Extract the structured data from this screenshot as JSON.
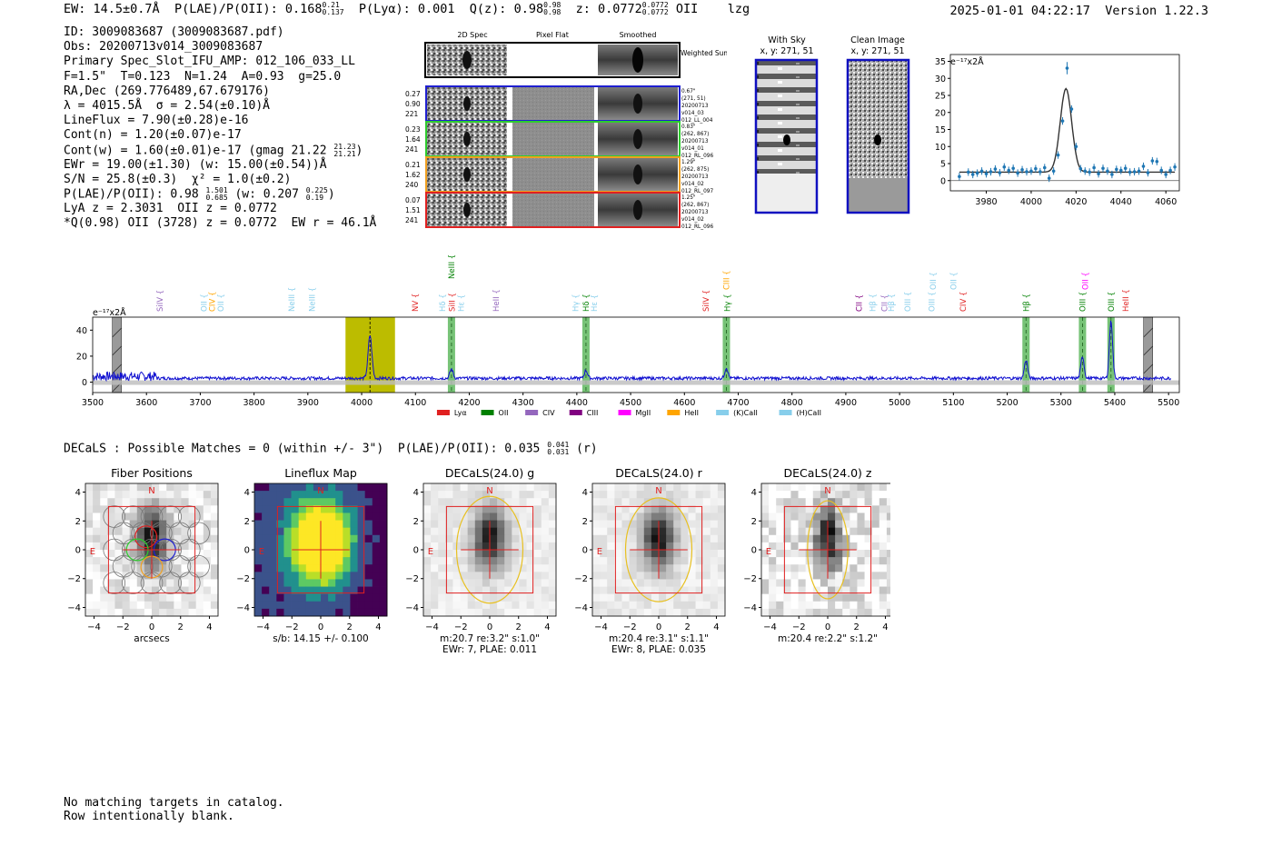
{
  "header": {
    "ew": "EW: 14.5±0.7Å",
    "plae": "P(LAE)/P(OII): 0.168",
    "plae_hi": "0.21",
    "plae_lo": "0.137",
    "plya": "P(Lyα): 0.001",
    "qz": "Q(z): 0.98",
    "qz_hi": "0.98",
    "qz_lo": "0.98",
    "z": "z: 0.0772",
    "z_hi": "0.0772",
    "z_lo": "0.0772",
    "line": "OII",
    "flag": "lzg",
    "datetime": "2025-01-01 04:22:17",
    "version": "Version 1.22.3"
  },
  "info": {
    "id": "ID: 3009083687 (3009083687.pdf)",
    "obs": "Obs: 20200713v014_3009083687",
    "primary": "Primary Spec_Slot_IFU_AMP: 012_106_033_LL",
    "fparams": "F=1.5\"  T=0.123  N=1.24  A=0.93  g=25.0",
    "radec": "RA,Dec (269.776489,67.679176)",
    "lambda": "λ = 4015.5Å  σ = 2.54(±0.10)Å",
    "lineflux": "LineFlux = 7.90(±0.28)e-16",
    "contn": "Cont(n) = 1.20(±0.07)e-17",
    "contw": "Cont(w) = 1.60(±0.01)e-17 (gmag 21.22",
    "contw_hi": "21.23",
    "contw_lo": "21.21",
    "contw_end": ")",
    "ewr": "EWr = 19.00(±1.30) (w: 15.00(±0.54))Å",
    "sn": "S/N = 25.8(±0.3)  χ² = 1.0(±0.2)",
    "plae": "P(LAE)/P(OII): 0.98",
    "plae_hi": "1.501",
    "plae_lo": "0.685",
    "plae_w": "(w: 0.207",
    "plae_w_hi": "0.225",
    "plae_w_lo": "0.19",
    "plae_end": ")",
    "lya": "LyA z = 2.3031  OII z = 0.0772",
    "q": "*Q(0.98) OII (3728) z = 0.0772  EW r = 46.1Å"
  },
  "cutouts": {
    "col_titles": [
      "2D Spec",
      "Pixel Flat",
      "Smoothed"
    ],
    "weighted_sum": "Weighted Sum",
    "rows": [
      {
        "left": [
          "0.27",
          "0.90",
          "221"
        ],
        "right": [
          "0.67\"",
          "(271, 51)",
          "20200713",
          "v014_03",
          "012_LL_004"
        ],
        "color": "#1f1fd0"
      },
      {
        "left": [
          "0.23",
          "1.64",
          "241"
        ],
        "right": [
          "0.83\"",
          "(262, 867)",
          "20200713",
          "v014_01",
          "012_RL_096"
        ],
        "color": "#2ecc2e"
      },
      {
        "left": [
          "0.21",
          "1.62",
          "240"
        ],
        "right": [
          "1.29\"",
          "(262, 875)",
          "20200713",
          "v014_02",
          "012_RL_097"
        ],
        "color": "#f0a020"
      },
      {
        "left": [
          "0.07",
          "1.51",
          "241"
        ],
        "right": [
          "1.25\"",
          "(262, 867)",
          "20200713",
          "v014_02",
          "012_RL_096"
        ],
        "color": "#e02020"
      }
    ]
  },
  "sky_panels": {
    "with_sky_title": "With Sky",
    "with_sky_sub": "x, y: 271, 51",
    "clean_title": "Clean Image",
    "clean_sub": "x, y: 271, 51"
  },
  "colors": {
    "series": "#1f77b4",
    "spectrum": "#1010d0",
    "highlight": "#bcbc00",
    "line_box": "#2ca02c",
    "red": "#e02020"
  },
  "chart_data": [
    {
      "type": "scatter",
      "name": "zoom-spectrum",
      "ylabel": "e⁻¹⁷x2Å",
      "xlim": [
        3964,
        4066
      ],
      "ylim": [
        -3,
        37
      ],
      "xticks": [
        3980,
        4000,
        4020,
        4040,
        4060
      ],
      "yticks": [
        0,
        5,
        10,
        15,
        20,
        25,
        30,
        35
      ],
      "x": [
        3968,
        3972,
        3974,
        3976,
        3978,
        3980,
        3982,
        3984,
        3986,
        3988,
        3990,
        3992,
        3994,
        3996,
        3998,
        4000,
        4002,
        4004,
        4006,
        4008,
        4010,
        4012,
        4014,
        4016,
        4018,
        4020,
        4022,
        4024,
        4026,
        4028,
        4030,
        4032,
        4034,
        4036,
        4038,
        4040,
        4042,
        4044,
        4046,
        4048,
        4050,
        4052,
        4054,
        4056,
        4058,
        4060,
        4062,
        4064
      ],
      "y": [
        1.2,
        2.5,
        1.8,
        2.2,
        2.8,
        2.0,
        2.6,
        3.4,
        2.3,
        4.0,
        3.0,
        3.6,
        2.2,
        3.2,
        2.6,
        2.8,
        3.5,
        2.6,
        3.8,
        0.7,
        2.8,
        7.5,
        17.5,
        33.0,
        21.0,
        10.0,
        3.5,
        2.8,
        2.5,
        3.8,
        2.0,
        3.6,
        2.8,
        1.8,
        3.3,
        3.0,
        3.6,
        2.5,
        2.6,
        2.8,
        4.2,
        2.3,
        5.8,
        5.6,
        3.0,
        1.8,
        3.0,
        4.0
      ],
      "fit_peak": 4015.5,
      "fit_sigma": 2.54,
      "fit_amp": 24.5,
      "fit_base": 2.5
    },
    {
      "type": "line",
      "name": "full-spectrum",
      "ylabel": "e⁻¹⁷x2Å",
      "xlim": [
        3500,
        5520
      ],
      "ylim": [
        -8,
        50
      ],
      "xticks": [
        3500,
        3600,
        3700,
        3800,
        3900,
        4000,
        4100,
        4200,
        4300,
        4400,
        4500,
        4600,
        4700,
        4800,
        4900,
        5000,
        5100,
        5200,
        5300,
        5400,
        5500
      ],
      "yticks": [
        0,
        20,
        40
      ],
      "peaks": [
        {
          "x": 4015.5,
          "h": 33,
          "w": 3.5
        },
        {
          "x": 4167,
          "h": 7,
          "w": 3
        },
        {
          "x": 4417,
          "h": 6,
          "w": 3
        },
        {
          "x": 4678,
          "h": 8,
          "w": 3
        },
        {
          "x": 5235,
          "h": 14,
          "w": 3
        },
        {
          "x": 5340,
          "h": 17,
          "w": 3
        },
        {
          "x": 5393,
          "h": 44,
          "w": 3
        }
      ],
      "continuum": 3,
      "highlight_range": [
        3970,
        4062
      ],
      "marker_x": 4015.5,
      "line_boxes": [
        4167,
        4417,
        4678,
        5235,
        5340,
        5393
      ],
      "hatched_boxes": [
        3545,
        5462
      ],
      "line_labels": [
        {
          "x": 3625,
          "label": "SiIV",
          "color": "#9467bd",
          "row": 2
        },
        {
          "x": 3707,
          "label": "OII",
          "color": "#87ceeb",
          "row": 2
        },
        {
          "x": 3722,
          "label": "CIV",
          "color": "#ffa500",
          "row": 2
        },
        {
          "x": 3738,
          "label": "OII",
          "color": "#87ceeb",
          "row": 2
        },
        {
          "x": 3870,
          "label": "NeIII",
          "color": "#87ceeb",
          "row": 2
        },
        {
          "x": 3908,
          "label": "NeIII",
          "color": "#87ceeb",
          "row": 2
        },
        {
          "x": 4000,
          "label": "",
          "color": "#000000",
          "row": 2
        },
        {
          "x": 4100,
          "label": "NV",
          "color": "#e02020",
          "row": 2
        },
        {
          "x": 4150,
          "label": "Hδ",
          "color": "#87ceeb",
          "row": 2
        },
        {
          "x": 4167,
          "label": "NeIII",
          "color": "#008000",
          "row": 0
        },
        {
          "x": 4168,
          "label": "SiII",
          "color": "#e02020",
          "row": 2
        },
        {
          "x": 4185,
          "label": "Hε",
          "color": "#87ceeb",
          "row": 2
        },
        {
          "x": 4250,
          "label": "HeII",
          "color": "#9467bd",
          "row": 2
        },
        {
          "x": 4398,
          "label": "Hγ",
          "color": "#87ceeb",
          "row": 2
        },
        {
          "x": 4417,
          "label": "Hδ",
          "color": "#008000",
          "row": 2
        },
        {
          "x": 4432,
          "label": "Hε",
          "color": "#87ceeb",
          "row": 2
        },
        {
          "x": 4640,
          "label": "SiIV",
          "color": "#e02020",
          "row": 2
        },
        {
          "x": 4678,
          "label": "CIII",
          "color": "#ffa500",
          "row": 1
        },
        {
          "x": 4680,
          "label": "Hγ",
          "color": "#008000",
          "row": 2
        },
        {
          "x": 4925,
          "label": "CII",
          "color": "#800080",
          "row": 2
        },
        {
          "x": 4950,
          "label": "Hβ",
          "color": "#87ceeb",
          "row": 2
        },
        {
          "x": 4972,
          "label": "CII",
          "color": "#9467bd",
          "row": 2
        },
        {
          "x": 4985,
          "label": "Hβ",
          "color": "#87ceeb",
          "row": 2
        },
        {
          "x": 5015,
          "label": "OIII",
          "color": "#87ceeb",
          "row": 2
        },
        {
          "x": 5060,
          "label": "OIII",
          "color": "#87ceeb",
          "row": 2
        },
        {
          "x": 5062,
          "label": "OII",
          "color": "#87ceeb",
          "row": 1
        },
        {
          "x": 5100,
          "label": "OII",
          "color": "#87ceeb",
          "row": 1
        },
        {
          "x": 5118,
          "label": "CIV",
          "color": "#e02020",
          "row": 2
        },
        {
          "x": 5235,
          "label": "Hβ",
          "color": "#008000",
          "row": 2
        },
        {
          "x": 5340,
          "label": "OIII",
          "color": "#008000",
          "row": 2
        },
        {
          "x": 5345,
          "label": "OII",
          "color": "#ff00ff",
          "row": 1
        },
        {
          "x": 5393,
          "label": "OIII",
          "color": "#008000",
          "row": 2
        },
        {
          "x": 5420,
          "label": "HeII",
          "color": "#e02020",
          "row": 2
        }
      ],
      "legend": [
        {
          "label": "Lyα",
          "color": "#e02020"
        },
        {
          "label": "OII",
          "color": "#008000"
        },
        {
          "label": "CIV",
          "color": "#9467bd"
        },
        {
          "label": "CIII",
          "color": "#800080"
        },
        {
          "label": "MgII",
          "color": "#ff00ff"
        },
        {
          "label": "HeII",
          "color": "#ffa500"
        },
        {
          "label": "(K)CaII",
          "color": "#87ceeb"
        },
        {
          "label": "(H)CaII",
          "color": "#87ceeb"
        }
      ]
    },
    {
      "type": "heatmap",
      "name": "imaging-panels",
      "xlim": [
        -4.6,
        4.6
      ],
      "ylim": [
        -4.6,
        4.6
      ],
      "ticks": [
        -4,
        -2,
        0,
        2,
        4
      ],
      "panels": [
        {
          "title": "Fiber Positions",
          "sub": [
            "arcsecs"
          ],
          "kind": "fiber"
        },
        {
          "title": "Lineflux Map",
          "sub": [
            "s/b: 14.15 +/- 0.100"
          ],
          "kind": "lineflux"
        },
        {
          "title": "DECaLS(24.0) g",
          "sub": [
            "m:20.7  re:3.2\"  s:1.0\"",
            "EWr: 7, PLAE: 0.011"
          ],
          "kind": "img",
          "ell_a": 2.3,
          "ell_b": 3.7
        },
        {
          "title": "DECaLS(24.0) r",
          "sub": [
            "m:20.4  re:3.1\"  s:1.1\"",
            "EWr: 8, PLAE: 0.035"
          ],
          "kind": "img",
          "ell_a": 2.3,
          "ell_b": 3.6
        },
        {
          "title": "DECaLS(24.0) z",
          "sub": [
            "m:20.4  re:2.2\"  s:1.2\""
          ],
          "kind": "imgz",
          "ell_a": 1.4,
          "ell_b": 3.4
        }
      ],
      "n_label": "N",
      "e_label": "E"
    }
  ],
  "decals": {
    "text": "DECaLS : Possible Matches = 0 (within +/- 3\")  P(LAE)/P(OII): 0.035",
    "hi": "0.041",
    "lo": "0.031",
    "end": "(r)"
  },
  "footer": {
    "line1": "No matching targets in catalog.",
    "line2": "Row intentionally blank."
  }
}
